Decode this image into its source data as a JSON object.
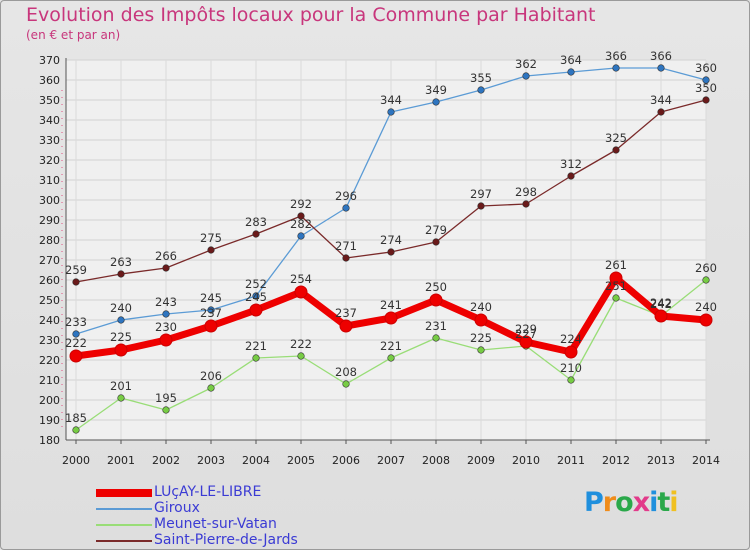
{
  "header": {
    "title": "Evolution des Impôts locaux pour la Commune par Habitant",
    "subtitle": "(en € et par an)"
  },
  "logo": {
    "text": "Proxiti"
  },
  "chart_data": {
    "type": "line",
    "title": "Evolution des Impôts locaux pour la Commune par Habitant",
    "subtitle": "(en € et par an)",
    "xlabel": "",
    "ylabel": "",
    "ylim": [
      180,
      370
    ],
    "yticks": [
      180,
      190,
      200,
      210,
      220,
      230,
      240,
      250,
      260,
      270,
      280,
      290,
      300,
      310,
      320,
      330,
      340,
      350,
      360,
      370
    ],
    "grid": true,
    "legend_position": "bottom-left",
    "categories": [
      "2000",
      "2001",
      "2002",
      "2003",
      "2004",
      "2005",
      "2006",
      "2007",
      "2008",
      "2009",
      "2010",
      "2011",
      "2012",
      "2013",
      "2014"
    ],
    "series": [
      {
        "name": "Giroux",
        "color": "#5b9bd5",
        "marker": "#2e75c0",
        "width": 1.3,
        "values": [
          233,
          240,
          243,
          245,
          252,
          282,
          296,
          344,
          349,
          355,
          362,
          364,
          366,
          366,
          360
        ]
      },
      {
        "name": "Saint-Pierre-de-Jards",
        "color": "#7a2a2a",
        "marker": "#6a1a1a",
        "width": 1.3,
        "values": [
          259,
          263,
          266,
          275,
          283,
          292,
          271,
          274,
          279,
          297,
          298,
          312,
          325,
          344,
          350
        ]
      },
      {
        "name": "Meunet-sur-Vatan",
        "color": "#99dd77",
        "marker": "#77cc44",
        "width": 1.3,
        "values": [
          185,
          201,
          195,
          206,
          221,
          222,
          208,
          221,
          231,
          225,
          227,
          210,
          251,
          242,
          260
        ]
      },
      {
        "name": "LUçAY-LE-LIBRE",
        "color": "#ee0000",
        "marker": "#ee0000",
        "width": 7,
        "values": [
          222,
          225,
          230,
          237,
          245,
          254,
          237,
          241,
          250,
          240,
          229,
          224,
          261,
          242,
          240
        ]
      }
    ],
    "legend_order": [
      "LUçAY-LE-LIBRE",
      "Giroux",
      "Meunet-sur-Vatan",
      "Saint-Pierre-de-Jards"
    ]
  }
}
